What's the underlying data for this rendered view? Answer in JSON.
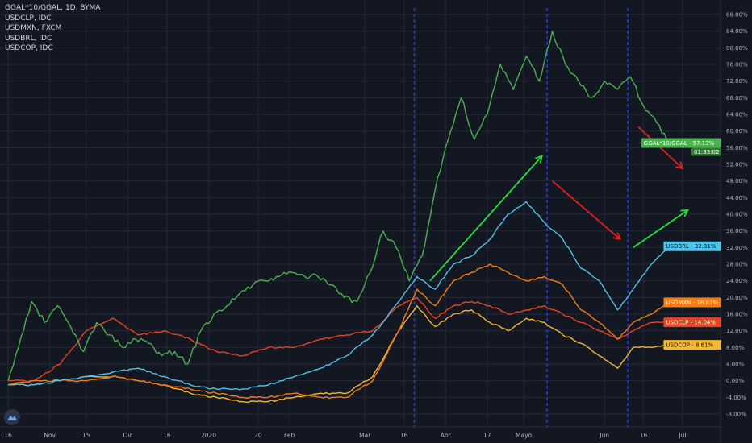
{
  "legend": {
    "lines": [
      "GGAL*10/GGAL, 1D, BYMA",
      "USDCLP, IDC",
      "USDMXN, FXCM",
      "USDBRL, IDC",
      "USDCOP, IDC"
    ]
  },
  "colors": {
    "background": "#131722",
    "grid": "#242836",
    "GGAL": "#4caf50",
    "USDBRL": "#4fc3e8",
    "USDMXN": "#f57c14",
    "USDCLP": "#e8431f",
    "USDCOP": "#f5b82e",
    "arrow_up": "#23e23c",
    "arrow_down": "#e51e1e",
    "vline": "#2a3bd6"
  },
  "chart_data": {
    "type": "line",
    "y_unit": "%",
    "ylim": [
      -10,
      90
    ],
    "y_ticks": [
      "88.00%",
      "84.00%",
      "80.00%",
      "76.00%",
      "72.00%",
      "68.00%",
      "64.00%",
      "60.00%",
      "56.00%",
      "52.00%",
      "48.00%",
      "44.00%",
      "40.00%",
      "36.00%",
      "32.00%",
      "28.00%",
      "24.00%",
      "20.00%",
      "16.00%",
      "12.00%",
      "8.00%",
      "4.00%",
      "0.00%",
      "-4.00%",
      "-8.00%"
    ],
    "y_tick_values": [
      88,
      84,
      80,
      76,
      72,
      68,
      64,
      60,
      56,
      52,
      48,
      44,
      40,
      36,
      32,
      28,
      24,
      20,
      16,
      12,
      8,
      4,
      0,
      -4,
      -8
    ],
    "x_start": "2019-10-16",
    "x_end": "2020-07-01",
    "x_ticks": [
      {
        "label": "16",
        "date": "2019-10-16"
      },
      {
        "label": "Nov",
        "date": "2019-11-01"
      },
      {
        "label": "15",
        "date": "2019-11-15"
      },
      {
        "label": "Dic",
        "date": "2019-12-01"
      },
      {
        "label": "16",
        "date": "2019-12-16"
      },
      {
        "label": "2020",
        "date": "2020-01-01"
      },
      {
        "label": "20",
        "date": "2020-01-20"
      },
      {
        "label": "Feb",
        "date": "2020-02-01"
      },
      {
        "label": "Mar",
        "date": "2020-03-01"
      },
      {
        "label": "16",
        "date": "2020-03-16"
      },
      {
        "label": "Abr",
        "date": "2020-04-01"
      },
      {
        "label": "17",
        "date": "2020-04-17"
      },
      {
        "label": "Mayo",
        "date": "2020-05-01"
      },
      {
        "label": "Jun",
        "date": "2020-06-01"
      },
      {
        "label": "16",
        "date": "2020-06-16"
      },
      {
        "label": "Jul",
        "date": "2020-07-01"
      }
    ],
    "current_level_line": 57.13,
    "series": [
      {
        "name": "GGAL*10/GGAL",
        "color": "#4caf50",
        "x": [
          "2019-10-16",
          "2019-10-20",
          "2019-10-25",
          "2019-10-30",
          "2019-11-04",
          "2019-11-09",
          "2019-11-14",
          "2019-11-19",
          "2019-11-24",
          "2019-11-29",
          "2019-12-04",
          "2019-12-09",
          "2019-12-14",
          "2019-12-19",
          "2019-12-24",
          "2019-12-29",
          "2020-01-03",
          "2020-01-08",
          "2020-01-13",
          "2020-01-18",
          "2020-01-23",
          "2020-01-28",
          "2020-02-02",
          "2020-02-07",
          "2020-02-12",
          "2020-02-17",
          "2020-02-22",
          "2020-02-27",
          "2020-03-03",
          "2020-03-08",
          "2020-03-13",
          "2020-03-18",
          "2020-03-23",
          "2020-03-28",
          "2020-04-02",
          "2020-04-07",
          "2020-04-12",
          "2020-04-17",
          "2020-04-22",
          "2020-04-27",
          "2020-05-02",
          "2020-05-07",
          "2020-05-12",
          "2020-05-17",
          "2020-05-22",
          "2020-05-27",
          "2020-06-01",
          "2020-06-06",
          "2020-06-11",
          "2020-06-16",
          "2020-06-21",
          "2020-06-26"
        ],
        "values": [
          0,
          8,
          19,
          14,
          18,
          13,
          7,
          14,
          11,
          8,
          10,
          9,
          6,
          7,
          4,
          12,
          16,
          18,
          21,
          23,
          24,
          25,
          26,
          25,
          25,
          23,
          20,
          19,
          26,
          36,
          32,
          24,
          30,
          46,
          58,
          68,
          58,
          64,
          76,
          70,
          78,
          72,
          84,
          76,
          72,
          68,
          72,
          70,
          73,
          66,
          62,
          57.13
        ]
      },
      {
        "name": "USDBRL",
        "color": "#4fc3e8",
        "x": [
          "2019-10-16",
          "2019-10-26",
          "2019-11-05",
          "2019-11-15",
          "2019-11-25",
          "2019-12-05",
          "2019-12-15",
          "2019-12-25",
          "2020-01-04",
          "2020-01-14",
          "2020-01-24",
          "2020-02-03",
          "2020-02-13",
          "2020-02-23",
          "2020-03-04",
          "2020-03-14",
          "2020-03-21",
          "2020-03-28",
          "2020-04-04",
          "2020-04-11",
          "2020-04-18",
          "2020-04-25",
          "2020-05-02",
          "2020-05-09",
          "2020-05-16",
          "2020-05-23",
          "2020-05-30",
          "2020-06-06",
          "2020-06-12",
          "2020-06-19",
          "2020-06-26"
        ],
        "values": [
          -1,
          -1,
          0,
          1,
          2,
          3,
          1,
          -1,
          -2,
          -2,
          -1,
          1,
          3,
          6,
          11,
          19,
          25,
          22,
          28,
          30,
          34,
          40,
          43,
          38,
          34,
          27,
          24,
          17,
          22,
          28,
          32.31
        ]
      },
      {
        "name": "USDMXN",
        "color": "#f57c14",
        "x": [
          "2019-10-16",
          "2019-10-26",
          "2019-11-05",
          "2019-11-15",
          "2019-11-25",
          "2019-12-05",
          "2019-12-15",
          "2019-12-25",
          "2020-01-04",
          "2020-01-14",
          "2020-01-24",
          "2020-02-03",
          "2020-02-13",
          "2020-02-23",
          "2020-03-04",
          "2020-03-14",
          "2020-03-21",
          "2020-03-28",
          "2020-04-04",
          "2020-04-11",
          "2020-04-18",
          "2020-04-25",
          "2020-05-02",
          "2020-05-09",
          "2020-05-16",
          "2020-05-23",
          "2020-05-30",
          "2020-06-06",
          "2020-06-12",
          "2020-06-19",
          "2020-06-26"
        ],
        "values": [
          -1,
          0,
          0,
          0,
          1,
          0,
          -1,
          -2,
          -3,
          -4,
          -4,
          -3,
          -4,
          -4,
          0,
          12,
          22,
          18,
          24,
          26,
          28,
          26,
          24,
          25,
          23,
          17,
          14,
          10,
          14,
          16,
          18.81
        ]
      },
      {
        "name": "USDCLP",
        "color": "#e8431f",
        "x": [
          "2019-10-16",
          "2019-10-26",
          "2019-11-05",
          "2019-11-15",
          "2019-11-25",
          "2019-12-05",
          "2019-12-15",
          "2019-12-25",
          "2020-01-04",
          "2020-01-14",
          "2020-01-24",
          "2020-02-03",
          "2020-02-13",
          "2020-02-23",
          "2020-03-04",
          "2020-03-14",
          "2020-03-21",
          "2020-03-28",
          "2020-04-04",
          "2020-04-11",
          "2020-04-18",
          "2020-04-25",
          "2020-05-02",
          "2020-05-09",
          "2020-05-16",
          "2020-05-23",
          "2020-05-30",
          "2020-06-06",
          "2020-06-12",
          "2020-06-19",
          "2020-06-26"
        ],
        "values": [
          0,
          0,
          4,
          12,
          15,
          11,
          12,
          10,
          7,
          6,
          8,
          8,
          10,
          11,
          12,
          18,
          20,
          15,
          18,
          19,
          18,
          16,
          17,
          18,
          16,
          14,
          12,
          10,
          12,
          14,
          14.04
        ]
      },
      {
        "name": "USDCOP",
        "color": "#f5b82e",
        "x": [
          "2019-10-16",
          "2019-10-26",
          "2019-11-05",
          "2019-11-15",
          "2019-11-25",
          "2019-12-05",
          "2019-12-15",
          "2019-12-25",
          "2020-01-04",
          "2020-01-14",
          "2020-01-24",
          "2020-02-03",
          "2020-02-13",
          "2020-02-23",
          "2020-03-04",
          "2020-03-14",
          "2020-03-21",
          "2020-03-28",
          "2020-04-04",
          "2020-04-11",
          "2020-04-18",
          "2020-04-25",
          "2020-05-02",
          "2020-05-09",
          "2020-05-16",
          "2020-05-23",
          "2020-05-30",
          "2020-06-06",
          "2020-06-12",
          "2020-06-19",
          "2020-06-26"
        ],
        "values": [
          -1,
          -1,
          0,
          1,
          1,
          0,
          -1,
          -3,
          -4,
          -5,
          -5,
          -4,
          -3,
          -3,
          1,
          12,
          18,
          13,
          16,
          17,
          14,
          12,
          15,
          14,
          11,
          9,
          6,
          3,
          8,
          8,
          8.61
        ]
      }
    ],
    "vertical_lines": [
      "2020-03-20",
      "2020-05-10",
      "2020-06-10"
    ],
    "arrows": [
      {
        "color": "up",
        "from": {
          "x": "2020-03-26",
          "y": 24
        },
        "to": {
          "x": "2020-05-08",
          "y": 54
        }
      },
      {
        "color": "down",
        "from": {
          "x": "2020-05-12",
          "y": 48
        },
        "to": {
          "x": "2020-06-07",
          "y": 34
        }
      },
      {
        "color": "up",
        "from": {
          "x": "2020-06-12",
          "y": 32
        },
        "to": {
          "x": "2020-07-03",
          "y": 41
        }
      },
      {
        "color": "down",
        "from": {
          "x": "2020-06-14",
          "y": 61
        },
        "to": {
          "x": "2020-07-01",
          "y": 51
        }
      }
    ],
    "badges": [
      {
        "series": "GGAL*10/GGAL",
        "label": "GGAL*10/GGAL",
        "value": "57.13%",
        "value_num": 57.13,
        "bg": "#4caf50",
        "fg": "#ffffff",
        "subtext": "01:35:02"
      },
      {
        "series": "USDBRL",
        "label": "USDBRL",
        "value": "32.31%",
        "value_num": 32.31,
        "bg": "#4fc3e8",
        "fg": "#0a1320"
      },
      {
        "series": "USDMXN",
        "label": "USDMXN",
        "value": "18.81%",
        "value_num": 18.81,
        "bg": "#f57c14",
        "fg": "#ffffff"
      },
      {
        "series": "USDCLP",
        "label": "USDCLP",
        "value": "14.04%",
        "value_num": 14.04,
        "bg": "#e8431f",
        "fg": "#ffffff"
      },
      {
        "series": "USDCOP",
        "label": "USDCOP",
        "value": "8.61%",
        "value_num": 8.61,
        "bg": "#f5b82e",
        "fg": "#0a1320"
      }
    ]
  }
}
